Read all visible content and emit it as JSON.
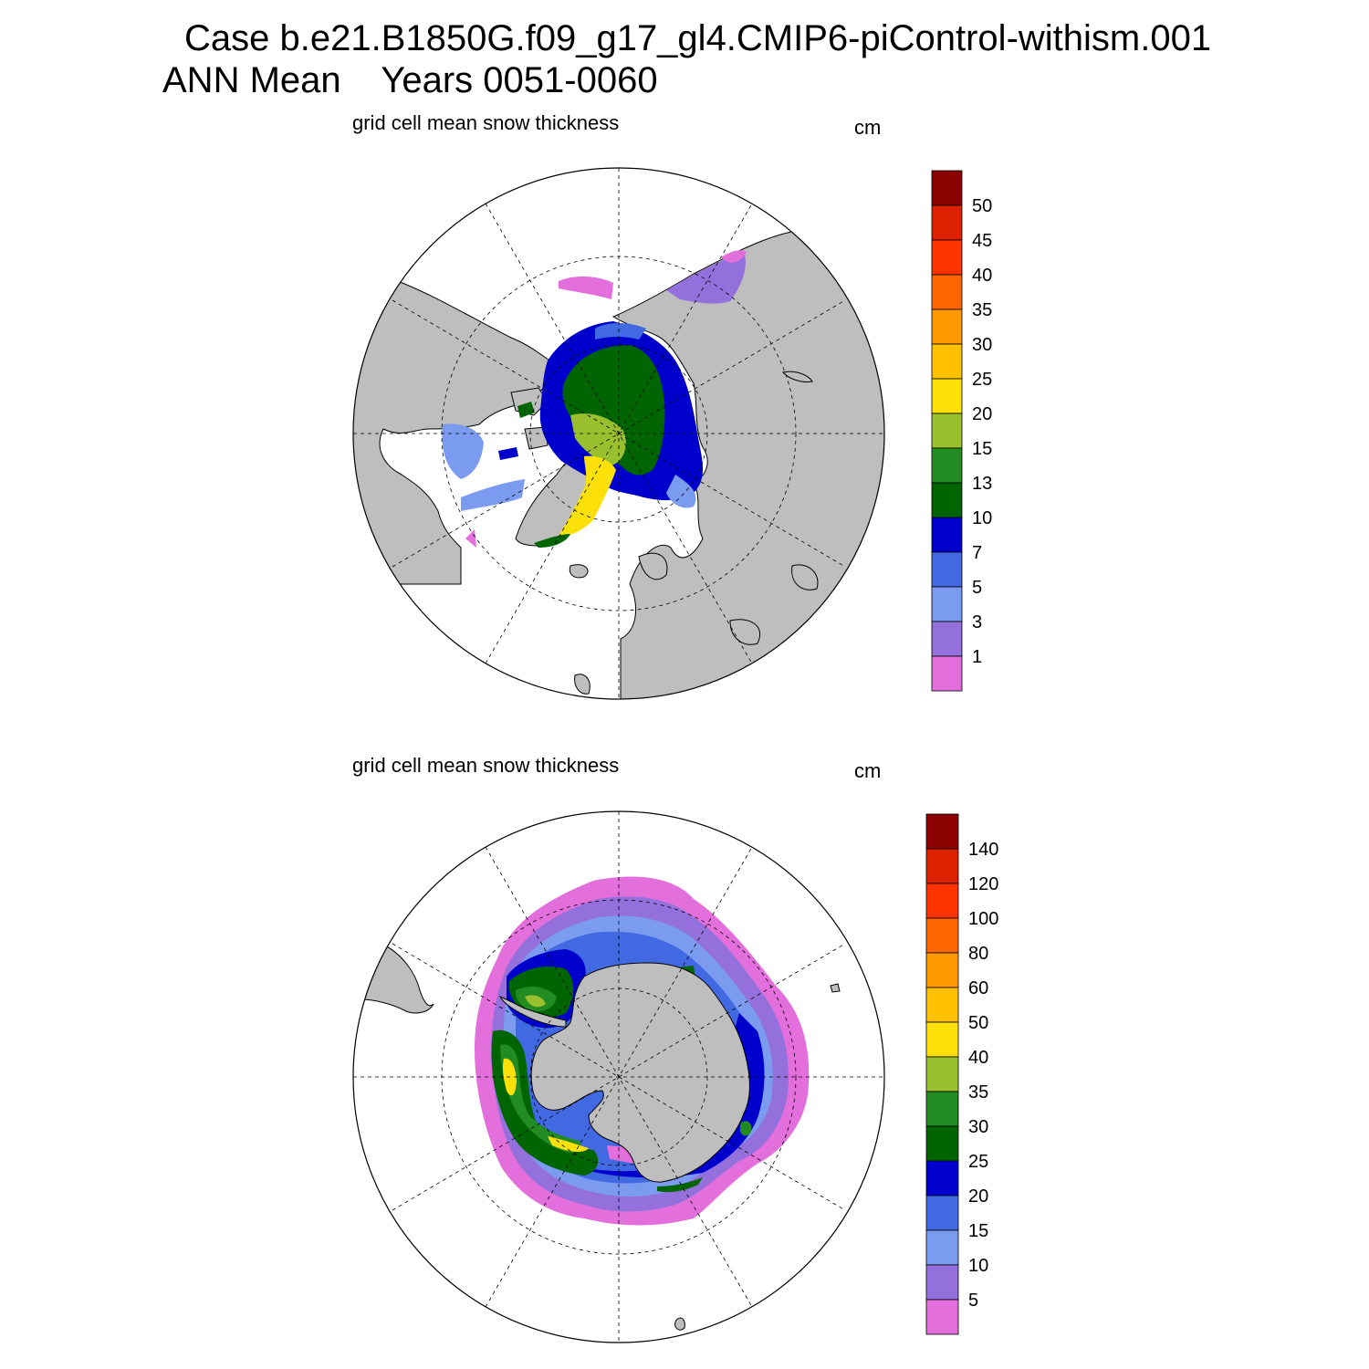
{
  "title": {
    "line1": "Case b.e21.B1850G.f09_g17_gl4.CMIP6-piControl-withism.001",
    "line2": "ANN Mean    Years 0051-0060"
  },
  "colors": {
    "land": "#bebebe",
    "ocean_no_ice": "#ffffff",
    "graticule": "#000000"
  },
  "panels": [
    {
      "id": "north",
      "hemisphere": "Northern",
      "title": "grid cell mean snow thickness",
      "units": "cm",
      "colorbar": {
        "levels": [
          "1",
          "3",
          "5",
          "7",
          "10",
          "13",
          "15",
          "20",
          "25",
          "30",
          "35",
          "40",
          "45",
          "50"
        ],
        "colors": [
          "#e36fdc",
          "#9370db",
          "#7b9bf0",
          "#4169e1",
          "#0000cd",
          "#006400",
          "#228b22",
          "#9ac030",
          "#fce00a",
          "#ffc000",
          "#ff9900",
          "#ff6600",
          "#ff3300",
          "#dd2200",
          "#8b0000"
        ]
      }
    },
    {
      "id": "south",
      "hemisphere": "Southern",
      "title": "grid cell mean snow thickness",
      "units": "cm",
      "colorbar": {
        "levels": [
          "5",
          "10",
          "15",
          "20",
          "25",
          "30",
          "35",
          "40",
          "50",
          "60",
          "80",
          "100",
          "120",
          "140"
        ],
        "colors": [
          "#e36fdc",
          "#9370db",
          "#7b9bf0",
          "#4169e1",
          "#0000cd",
          "#006400",
          "#228b22",
          "#9ac030",
          "#fce00a",
          "#ffc000",
          "#ff9900",
          "#ff6600",
          "#ff3300",
          "#dd2200",
          "#8b0000"
        ]
      }
    }
  ]
}
